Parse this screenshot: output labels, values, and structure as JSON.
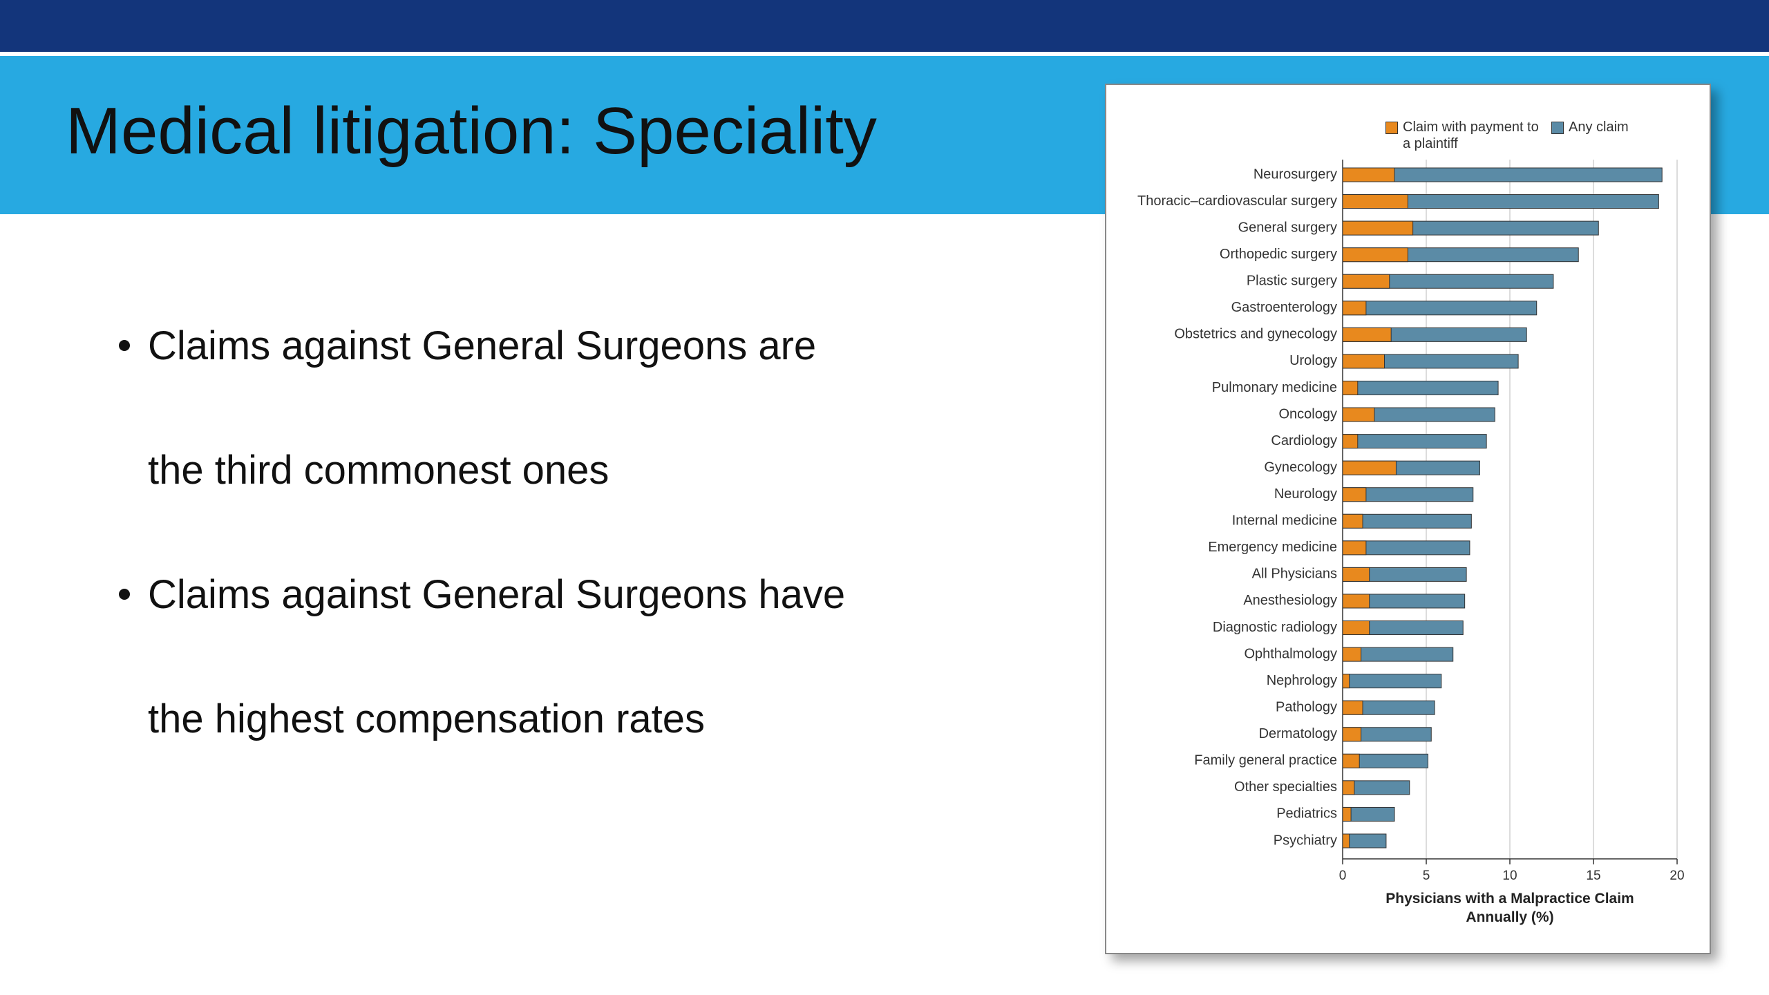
{
  "slide": {
    "title": "Medical litigation: Speciality",
    "bullets": [
      [
        "Claims against General Surgeons are",
        "the third commonest ones"
      ],
      [
        "Claims against General Surgeons have",
        "the highest compensation rates"
      ]
    ]
  },
  "chart_data": {
    "type": "bar",
    "orientation": "horizontal",
    "overlap": true,
    "x_label": "Physicians with a Malpractice Claim Annually (%)",
    "categories": [
      "Neurosurgery",
      "Thoracic–cardiovascular surgery",
      "General surgery",
      "Orthopedic surgery",
      "Plastic surgery",
      "Gastroenterology",
      "Obstetrics and gynecology",
      "Urology",
      "Pulmonary medicine",
      "Oncology",
      "Cardiology",
      "Gynecology",
      "Neurology",
      "Internal medicine",
      "Emergency medicine",
      "All Physicians",
      "Anesthesiology",
      "Diagnostic radiology",
      "Ophthalmology",
      "Nephrology",
      "Pathology",
      "Dermatology",
      "Family general practice",
      "Other specialties",
      "Pediatrics",
      "Psychiatry"
    ],
    "series": [
      {
        "name": "Claim with payment to a plaintiff",
        "color": "#e8891e",
        "values": [
          3.1,
          3.9,
          4.2,
          3.9,
          2.8,
          1.4,
          2.9,
          2.5,
          0.9,
          1.9,
          0.9,
          3.2,
          1.4,
          1.2,
          1.4,
          1.6,
          1.6,
          1.6,
          1.1,
          0.4,
          1.2,
          1.1,
          1.0,
          0.7,
          0.5,
          0.4
        ]
      },
      {
        "name": "Any claim",
        "color": "#5b8ba6",
        "values": [
          19.1,
          18.9,
          15.3,
          14.1,
          12.6,
          11.6,
          11.0,
          10.5,
          9.3,
          9.1,
          8.6,
          8.2,
          7.8,
          7.7,
          7.6,
          7.4,
          7.3,
          7.2,
          6.6,
          5.9,
          5.5,
          5.3,
          5.1,
          4.0,
          3.1,
          2.6
        ]
      }
    ],
    "xlim": [
      0,
      20
    ],
    "xticks": [
      0,
      5,
      10,
      15,
      20
    ],
    "grid": true,
    "legend": "top"
  }
}
